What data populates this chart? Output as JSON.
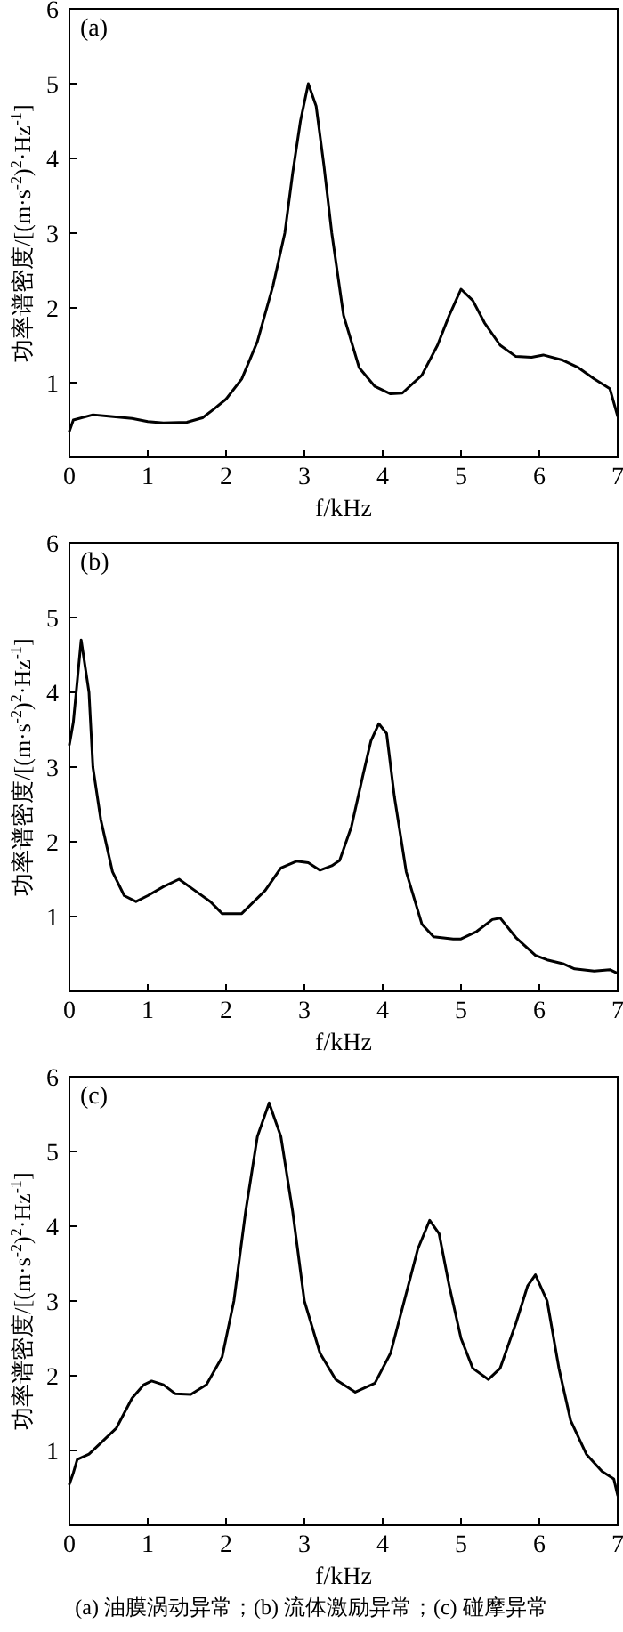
{
  "chart_data": [
    {
      "type": "line",
      "title": "(a)",
      "xlabel": "f/kHz",
      "ylabel": "功率谱密度/[(m·s$^{-2}$)$^{2}$·Hz$^{-1}$]",
      "color": "#000000",
      "xlim": [
        0,
        7
      ],
      "ylim": [
        0,
        6
      ],
      "xticks": [
        0,
        1,
        2,
        3,
        4,
        5,
        6,
        7
      ],
      "yticks": [
        1,
        2,
        3,
        4,
        5,
        6
      ],
      "x": [
        0,
        0.05,
        0.3,
        0.5,
        0.8,
        1.0,
        1.2,
        1.5,
        1.7,
        1.85,
        2.0,
        2.2,
        2.4,
        2.6,
        2.75,
        2.85,
        2.95,
        3.05,
        3.15,
        3.25,
        3.35,
        3.5,
        3.7,
        3.9,
        4.1,
        4.25,
        4.5,
        4.7,
        4.85,
        5.0,
        5.15,
        5.3,
        5.5,
        5.7,
        5.9,
        6.05,
        6.3,
        6.5,
        6.7,
        6.9,
        7.0
      ],
      "values": [
        0.35,
        0.5,
        0.57,
        0.55,
        0.52,
        0.48,
        0.46,
        0.47,
        0.53,
        0.65,
        0.78,
        1.05,
        1.55,
        2.3,
        3.0,
        3.8,
        4.5,
        5.0,
        4.7,
        3.9,
        3.0,
        1.9,
        1.2,
        0.95,
        0.85,
        0.86,
        1.1,
        1.5,
        1.9,
        2.25,
        2.1,
        1.8,
        1.5,
        1.35,
        1.34,
        1.37,
        1.3,
        1.2,
        1.05,
        0.92,
        0.55
      ]
    },
    {
      "type": "line",
      "title": "(b)",
      "xlabel": "f/kHz",
      "ylabel": "功率谱密度/[(m·s$^{-2}$)$^{2}$·Hz$^{-1}$]",
      "color": "#000000",
      "xlim": [
        0,
        7
      ],
      "ylim": [
        0,
        6
      ],
      "xticks": [
        0,
        1,
        2,
        3,
        4,
        5,
        6,
        7
      ],
      "yticks": [
        1,
        2,
        3,
        4,
        5,
        6
      ],
      "x": [
        0,
        0.05,
        0.15,
        0.25,
        0.3,
        0.4,
        0.55,
        0.7,
        0.85,
        1.0,
        1.2,
        1.4,
        1.6,
        1.8,
        1.95,
        2.2,
        2.5,
        2.7,
        2.9,
        3.05,
        3.2,
        3.35,
        3.45,
        3.6,
        3.75,
        3.85,
        3.95,
        4.05,
        4.15,
        4.3,
        4.5,
        4.65,
        4.9,
        5.0,
        5.2,
        5.4,
        5.5,
        5.7,
        5.95,
        6.1,
        6.3,
        6.45,
        6.7,
        6.9,
        7.0
      ],
      "values": [
        3.3,
        3.6,
        4.7,
        4.0,
        3.0,
        2.3,
        1.6,
        1.28,
        1.2,
        1.28,
        1.4,
        1.5,
        1.35,
        1.2,
        1.04,
        1.04,
        1.35,
        1.65,
        1.74,
        1.72,
        1.62,
        1.68,
        1.75,
        2.2,
        2.9,
        3.35,
        3.58,
        3.45,
        2.6,
        1.6,
        0.9,
        0.73,
        0.7,
        0.7,
        0.8,
        0.96,
        0.98,
        0.72,
        0.48,
        0.42,
        0.37,
        0.3,
        0.27,
        0.29,
        0.24
      ]
    },
    {
      "type": "line",
      "title": "(c)",
      "xlabel": "f/kHz",
      "ylabel": "功率谱密度/[(m·s$^{-2}$)$^{2}$·Hz$^{-1}$]",
      "color": "#000000",
      "xlim": [
        0,
        7
      ],
      "ylim": [
        0,
        6
      ],
      "xticks": [
        0,
        1,
        2,
        3,
        4,
        5,
        6,
        7
      ],
      "yticks": [
        1,
        2,
        3,
        4,
        5,
        6
      ],
      "x": [
        0,
        0.05,
        0.1,
        0.25,
        0.4,
        0.6,
        0.8,
        0.95,
        1.05,
        1.2,
        1.35,
        1.55,
        1.75,
        1.95,
        2.1,
        2.25,
        2.4,
        2.55,
        2.7,
        2.85,
        3.0,
        3.2,
        3.4,
        3.65,
        3.9,
        4.1,
        4.3,
        4.45,
        4.6,
        4.72,
        4.85,
        5.0,
        5.15,
        5.35,
        5.5,
        5.7,
        5.85,
        5.95,
        6.1,
        6.25,
        6.4,
        6.6,
        6.8,
        6.95,
        7.0
      ],
      "values": [
        0.55,
        0.7,
        0.88,
        0.95,
        1.1,
        1.3,
        1.7,
        1.88,
        1.93,
        1.88,
        1.76,
        1.75,
        1.88,
        2.25,
        3.0,
        4.2,
        5.2,
        5.65,
        5.2,
        4.2,
        3.0,
        2.3,
        1.95,
        1.78,
        1.9,
        2.3,
        3.1,
        3.7,
        4.08,
        3.9,
        3.2,
        2.5,
        2.1,
        1.95,
        2.1,
        2.7,
        3.2,
        3.35,
        3.0,
        2.1,
        1.4,
        0.95,
        0.72,
        0.62,
        0.4
      ],
      "annotations": [
        "(a) 油膜涡动异常；(b) 流体激励异常；(c) 碰摩异常"
      ]
    }
  ]
}
